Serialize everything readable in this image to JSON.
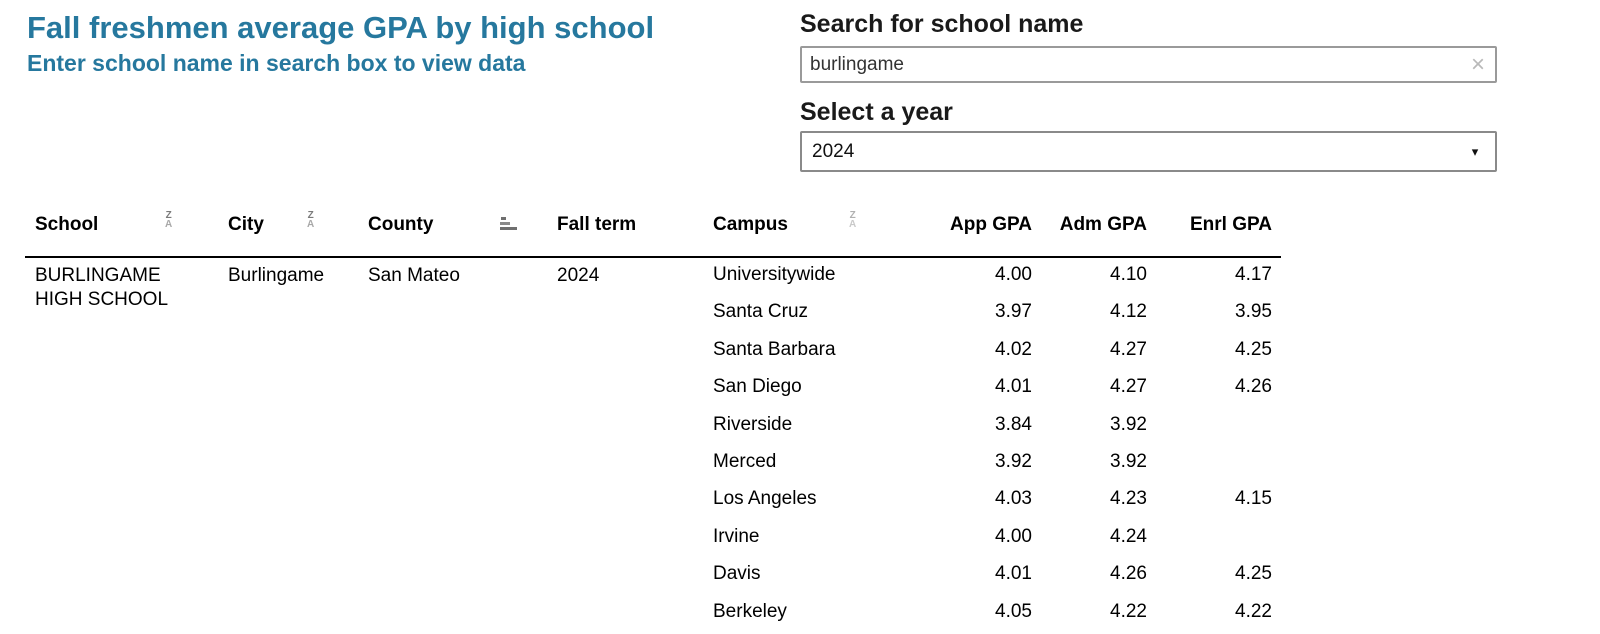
{
  "header": {
    "title": "Fall freshmen average GPA by high school",
    "subtitle": "Enter school name in search box to view data"
  },
  "controls": {
    "search_label": "Search for school name",
    "search_value": "burlingame",
    "clear_icon": "×",
    "year_label": "Select a year",
    "year_value": "2024",
    "caret": "▾"
  },
  "icons": {
    "sort_top": "Z",
    "sort_bottom": "A"
  },
  "colors": {
    "accent": "#26789E",
    "header_text": "#1a1a1a",
    "table_text": "#000000",
    "border_gray": "#9a9a9a"
  },
  "table": {
    "columns": {
      "school": "School",
      "city": "City",
      "county": "County",
      "fall_term": "Fall term",
      "campus": "Campus",
      "app_gpa": "App GPA",
      "adm_gpa": "Adm GPA",
      "enrl_gpa": "Enrl GPA"
    },
    "record": {
      "school": "BURLINGAME HIGH SCHOOL",
      "city": "Burlingame",
      "county": "San Mateo",
      "fall_term": "2024"
    },
    "rows": [
      {
        "campus": "Universitywide",
        "app": "4.00",
        "adm": "4.10",
        "enrl": "4.17"
      },
      {
        "campus": "Santa Cruz",
        "app": "3.97",
        "adm": "4.12",
        "enrl": "3.95"
      },
      {
        "campus": "Santa Barbara",
        "app": "4.02",
        "adm": "4.27",
        "enrl": "4.25"
      },
      {
        "campus": "San Diego",
        "app": "4.01",
        "adm": "4.27",
        "enrl": "4.26"
      },
      {
        "campus": "Riverside",
        "app": "3.84",
        "adm": "3.92",
        "enrl": ""
      },
      {
        "campus": "Merced",
        "app": "3.92",
        "adm": "3.92",
        "enrl": ""
      },
      {
        "campus": "Los Angeles",
        "app": "4.03",
        "adm": "4.23",
        "enrl": "4.15"
      },
      {
        "campus": "Irvine",
        "app": "4.00",
        "adm": "4.24",
        "enrl": ""
      },
      {
        "campus": "Davis",
        "app": "4.01",
        "adm": "4.26",
        "enrl": "4.25"
      },
      {
        "campus": "Berkeley",
        "app": "4.05",
        "adm": "4.22",
        "enrl": "4.22"
      }
    ]
  }
}
